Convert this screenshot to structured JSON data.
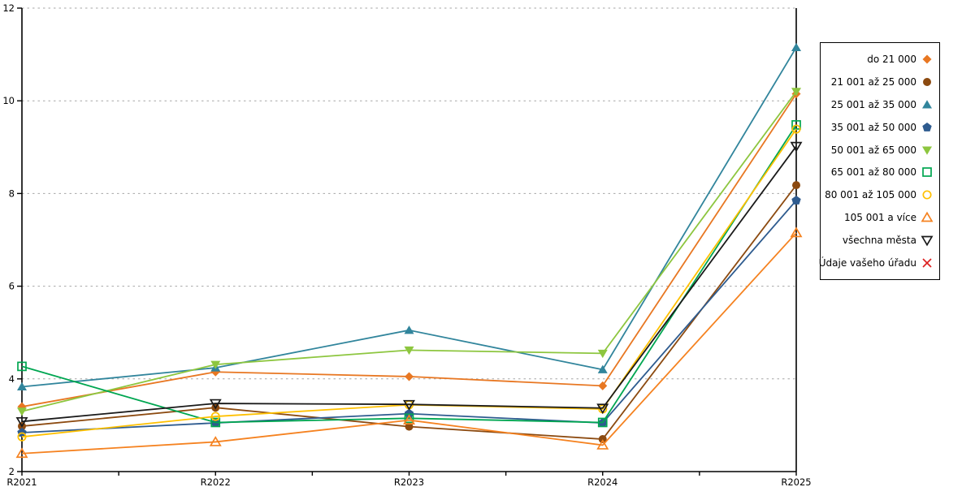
{
  "chart_data": {
    "type": "line",
    "title": "",
    "xlabel": "",
    "ylabel": "",
    "categories": [
      "R2021",
      "R2022",
      "R2023",
      "R2024",
      "R2025"
    ],
    "ylim": [
      2,
      12
    ],
    "yticks": [
      2,
      4,
      6,
      8,
      10,
      12
    ],
    "grid": "horizontal dotted at y ticks",
    "legend_position": "right",
    "axis_color": "#000000",
    "gridline_color": "#A6A6A6",
    "series": [
      {
        "name": "do 21 000",
        "marker": "diamond-filled",
        "color": "#E87722",
        "values": [
          3.4,
          4.15,
          4.05,
          3.85,
          10.15
        ]
      },
      {
        "name": "21 001 až 25 000",
        "marker": "circle-filled",
        "color": "#8C4A10",
        "values": [
          2.98,
          3.38,
          2.97,
          2.7,
          8.18
        ]
      },
      {
        "name": "25 001 až 35 000",
        "marker": "triangle-up-filled",
        "color": "#31859C",
        "values": [
          3.83,
          4.24,
          5.05,
          4.2,
          11.15
        ]
      },
      {
        "name": "35 001 až 50 000",
        "marker": "pentagon-filled",
        "color": "#2E5B8F",
        "values": [
          2.84,
          3.05,
          3.25,
          3.05,
          7.85
        ]
      },
      {
        "name": "50 001 až 65 000",
        "marker": "triangle-down-filled",
        "color": "#8DC63F",
        "values": [
          3.3,
          4.31,
          4.62,
          4.55,
          10.2
        ]
      },
      {
        "name": "65 001 až 80 000",
        "marker": "square-open",
        "color": "#00A651",
        "values": [
          4.27,
          3.06,
          3.15,
          3.06,
          9.48
        ]
      },
      {
        "name": "80 001 až 105 000",
        "marker": "circle-open",
        "color": "#FFC000",
        "values": [
          2.75,
          3.19,
          3.44,
          3.35,
          9.39
        ]
      },
      {
        "name": "105 001 a více",
        "marker": "triangle-up-open",
        "color": "#F58220",
        "values": [
          2.39,
          2.64,
          3.11,
          2.57,
          7.15
        ]
      },
      {
        "name": "všechna města",
        "marker": "triangle-down-open",
        "color": "#1A1A1A",
        "values": [
          3.08,
          3.47,
          3.45,
          3.37,
          9.02
        ]
      },
      {
        "name": "Údaje vašeho úřadu",
        "marker": "x",
        "color": "#DD2222",
        "values": []
      }
    ]
  }
}
